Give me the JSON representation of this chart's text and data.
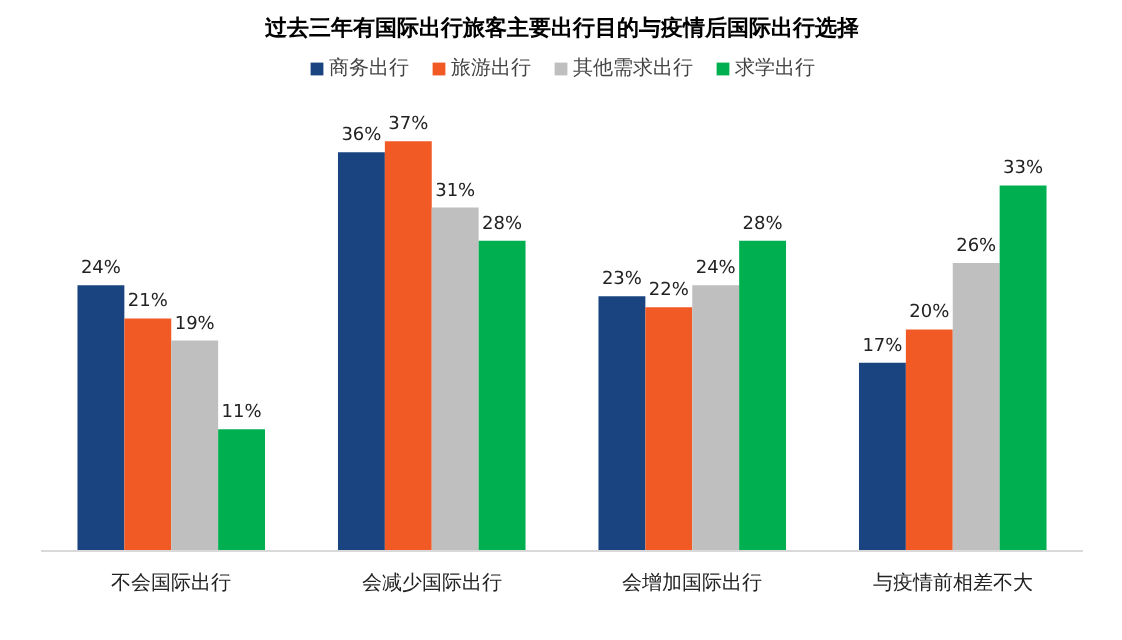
{
  "chart_data": {
    "type": "bar",
    "title": "过去三年有国际出行旅客主要出行目的与疫情后国际出行选择",
    "categories": [
      "不会国际出行",
      "会减少国际出行",
      "会增加国际出行",
      "与疫情前相差不大"
    ],
    "series": [
      {
        "name": "商务出行",
        "color": "#1a4480",
        "values": [
          24,
          36,
          23,
          17
        ],
        "value_labels": [
          "24%",
          "36%",
          "23%",
          "17%"
        ]
      },
      {
        "name": "旅游出行",
        "color": "#f15a24",
        "values": [
          21,
          37,
          22,
          20
        ],
        "value_labels": [
          "21%",
          "37%",
          "22%",
          "20%"
        ]
      },
      {
        "name": "其他需求出行",
        "color": "#bfbfbf",
        "values": [
          19,
          31,
          24,
          26
        ],
        "value_labels": [
          "19%",
          "31%",
          "24%",
          "26%"
        ]
      },
      {
        "name": "求学出行",
        "color": "#00b050",
        "values": [
          11,
          28,
          28,
          33
        ],
        "value_labels": [
          "11%",
          "28%",
          "28%",
          "33%"
        ]
      }
    ],
    "legend": "top",
    "tick_labels": "x"
  }
}
